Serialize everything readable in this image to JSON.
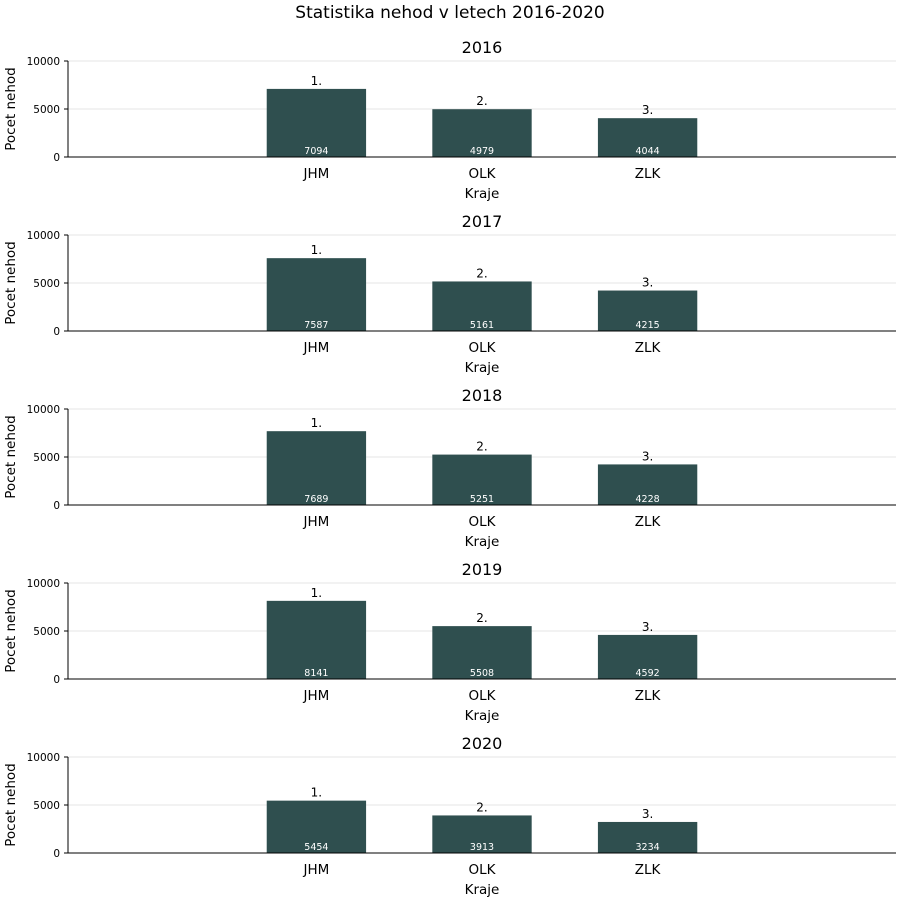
{
  "figure": {
    "suptitle": "Statistika nehod v letech 2016-2020",
    "bar_color": "#2f4f4f",
    "grid_color": "#e6e6e6",
    "axis_color": "#000000",
    "value_label_color": "#ffffff"
  },
  "chart_data": [
    {
      "type": "bar",
      "title": "2016",
      "categories": [
        "JHM",
        "OLK",
        "ZLK"
      ],
      "values": [
        7094,
        4979,
        4044
      ],
      "rank_labels": [
        "1.",
        "2.",
        "3."
      ],
      "xlabel": "Kraje",
      "ylabel": "Pocet nehod",
      "ylim": [
        0,
        10000
      ],
      "yticks": [
        0,
        5000,
        10000
      ],
      "grid": "y"
    },
    {
      "type": "bar",
      "title": "2017",
      "categories": [
        "JHM",
        "OLK",
        "ZLK"
      ],
      "values": [
        7587,
        5161,
        4215
      ],
      "rank_labels": [
        "1.",
        "2.",
        "3."
      ],
      "xlabel": "Kraje",
      "ylabel": "Pocet nehod",
      "ylim": [
        0,
        10000
      ],
      "yticks": [
        0,
        5000,
        10000
      ],
      "grid": "y"
    },
    {
      "type": "bar",
      "title": "2018",
      "categories": [
        "JHM",
        "OLK",
        "ZLK"
      ],
      "values": [
        7689,
        5251,
        4228
      ],
      "rank_labels": [
        "1.",
        "2.",
        "3."
      ],
      "xlabel": "Kraje",
      "ylabel": "Pocet nehod",
      "ylim": [
        0,
        10000
      ],
      "yticks": [
        0,
        5000,
        10000
      ],
      "grid": "y"
    },
    {
      "type": "bar",
      "title": "2019",
      "categories": [
        "JHM",
        "OLK",
        "ZLK"
      ],
      "values": [
        8141,
        5508,
        4592
      ],
      "rank_labels": [
        "1.",
        "2.",
        "3."
      ],
      "xlabel": "Kraje",
      "ylabel": "Pocet nehod",
      "ylim": [
        0,
        10000
      ],
      "yticks": [
        0,
        5000,
        10000
      ],
      "grid": "y"
    },
    {
      "type": "bar",
      "title": "2020",
      "categories": [
        "JHM",
        "OLK",
        "ZLK"
      ],
      "values": [
        5454,
        3913,
        3234
      ],
      "rank_labels": [
        "1.",
        "2.",
        "3."
      ],
      "xlabel": "Kraje",
      "ylabel": "Pocet nehod",
      "ylim": [
        0,
        10000
      ],
      "yticks": [
        0,
        5000,
        10000
      ],
      "grid": "y"
    }
  ]
}
